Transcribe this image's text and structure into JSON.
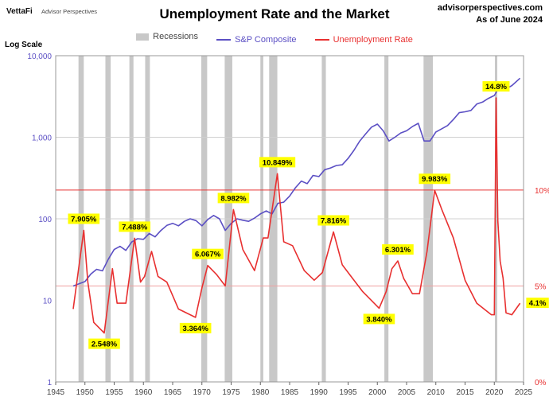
{
  "header": {
    "logo": "VettaFi",
    "logo_sub": "Advisor Perspectives",
    "title": "Unemployment Rate and the Market",
    "site": "advisorperspectives.com",
    "as_of": "As of June 2024"
  },
  "legend": {
    "recessions": "Recessions",
    "sp": "S&P Composite",
    "unemployment": "Unemployment Rate"
  },
  "axis": {
    "left_title": "Log Scale",
    "left_ticks": [
      "1",
      "10",
      "100",
      "1,000",
      "10,000"
    ],
    "right_ticks": [
      "0%",
      "5%",
      "10%"
    ],
    "x_ticks": [
      "1945",
      "1950",
      "1955",
      "1960",
      "1965",
      "1970",
      "1975",
      "1980",
      "1985",
      "1990",
      "1995",
      "2000",
      "2005",
      "2010",
      "2015",
      "2020",
      "2025"
    ]
  },
  "colors": {
    "sp": "#5b4fc4",
    "unemployment": "#e83030",
    "recession": "#c8c8c8",
    "label_bg": "#ffff00",
    "right_axis": "#e83030"
  },
  "chart_data": {
    "type": "line",
    "title": "Unemployment Rate and the Market",
    "scales": {
      "left": "log",
      "left_range": [
        1,
        10000
      ],
      "right_range_pct": [
        0,
        17
      ],
      "x_range": [
        1945,
        2025
      ]
    },
    "grid": true,
    "legend_position": "top-center",
    "recessions": [
      [
        1948.9,
        1949.8
      ],
      [
        1953.5,
        1954.4
      ],
      [
        1957.6,
        1958.3
      ],
      [
        1960.3,
        1961.1
      ],
      [
        1969.9,
        1970.9
      ],
      [
        1973.9,
        1975.2
      ],
      [
        1980.0,
        1980.5
      ],
      [
        1981.5,
        1982.9
      ],
      [
        1990.5,
        1991.2
      ],
      [
        2001.2,
        2001.9
      ],
      [
        2007.9,
        2009.5
      ],
      [
        2020.1,
        2020.4
      ]
    ],
    "series": [
      {
        "name": "S&P Composite",
        "axis": "left",
        "x": [
          1948,
          1949,
          1950,
          1951,
          1952,
          1953,
          1954,
          1955,
          1956,
          1957,
          1958,
          1959,
          1960,
          1961,
          1962,
          1963,
          1964,
          1965,
          1966,
          1967,
          1968,
          1969,
          1970,
          1971,
          1972,
          1973,
          1974,
          1975,
          1976,
          1977,
          1978,
          1979,
          1980,
          1981,
          1982,
          1983,
          1984,
          1985,
          1986,
          1987,
          1988,
          1989,
          1990,
          1991,
          1992,
          1993,
          1994,
          1995,
          1996,
          1997,
          1998,
          1999,
          2000,
          2001,
          2002,
          2003,
          2004,
          2005,
          2006,
          2007,
          2008,
          2009,
          2010,
          2011,
          2012,
          2013,
          2014,
          2015,
          2016,
          2017,
          2018,
          2019,
          2020,
          2021,
          2022,
          2023,
          2024.4
        ],
        "values": [
          15,
          16,
          17,
          21,
          24,
          23,
          32,
          42,
          46,
          41,
          52,
          57,
          56,
          66,
          60,
          72,
          83,
          88,
          82,
          93,
          100,
          95,
          82,
          98,
          110,
          100,
          72,
          88,
          100,
          96,
          93,
          102,
          115,
          125,
          115,
          155,
          160,
          190,
          240,
          290,
          270,
          340,
          330,
          400,
          420,
          450,
          460,
          550,
          690,
          900,
          1100,
          1330,
          1450,
          1200,
          900,
          1000,
          1130,
          1200,
          1350,
          1480,
          900,
          900,
          1160,
          1270,
          1390,
          1650,
          2000,
          2050,
          2130,
          2550,
          2700,
          3000,
          3250,
          4300,
          3900,
          4300,
          5300
        ]
      },
      {
        "name": "Unemployment Rate",
        "axis": "right",
        "unit": "%",
        "x": [
          1948,
          1949.8,
          1950.5,
          1951.5,
          1953.3,
          1954.7,
          1955.5,
          1957,
          1958.5,
          1959.5,
          1960.2,
          1961.4,
          1962.5,
          1964,
          1966,
          1968.9,
          1970,
          1971,
          1972.5,
          1974,
          1975.4,
          1977,
          1979,
          1980.5,
          1981.3,
          1982.9,
          1984,
          1985.5,
          1987.5,
          1989.2,
          1990.6,
          1992.5,
          1994,
          1995.5,
          1997.5,
          2000.3,
          2001.5,
          2002.5,
          2003.5,
          2004.5,
          2006,
          2007.2,
          2008.5,
          2009.8,
          2011,
          2013,
          2015,
          2017,
          2019.5,
          2020.0,
          2020.3,
          2020.6,
          2021,
          2021.5,
          2022,
          2023,
          2024.4
        ],
        "values": [
          3.8,
          7.9,
          5.2,
          3.1,
          2.548,
          5.9,
          4.1,
          4.1,
          7.488,
          5.2,
          5.5,
          6.8,
          5.5,
          5.2,
          3.8,
          3.364,
          4.9,
          6.067,
          5.6,
          5.0,
          8.982,
          6.9,
          5.8,
          7.5,
          7.5,
          10.849,
          7.3,
          7.1,
          5.8,
          5.3,
          5.7,
          7.816,
          6.1,
          5.5,
          4.7,
          3.84,
          4.7,
          5.9,
          6.301,
          5.4,
          4.6,
          4.6,
          6.8,
          9.983,
          9.0,
          7.5,
          5.3,
          4.1,
          3.5,
          3.5,
          14.8,
          8.4,
          6.3,
          5.4,
          3.6,
          3.5,
          4.1
        ]
      }
    ],
    "annotations": [
      "7.905%",
      "2.548%",
      "7.488%",
      "3.364%",
      "6.067%",
      "8.982%",
      "10.849%",
      "7.816%",
      "3.840%",
      "6.301%",
      "9.983%",
      "14.8%",
      "4.1%"
    ]
  }
}
